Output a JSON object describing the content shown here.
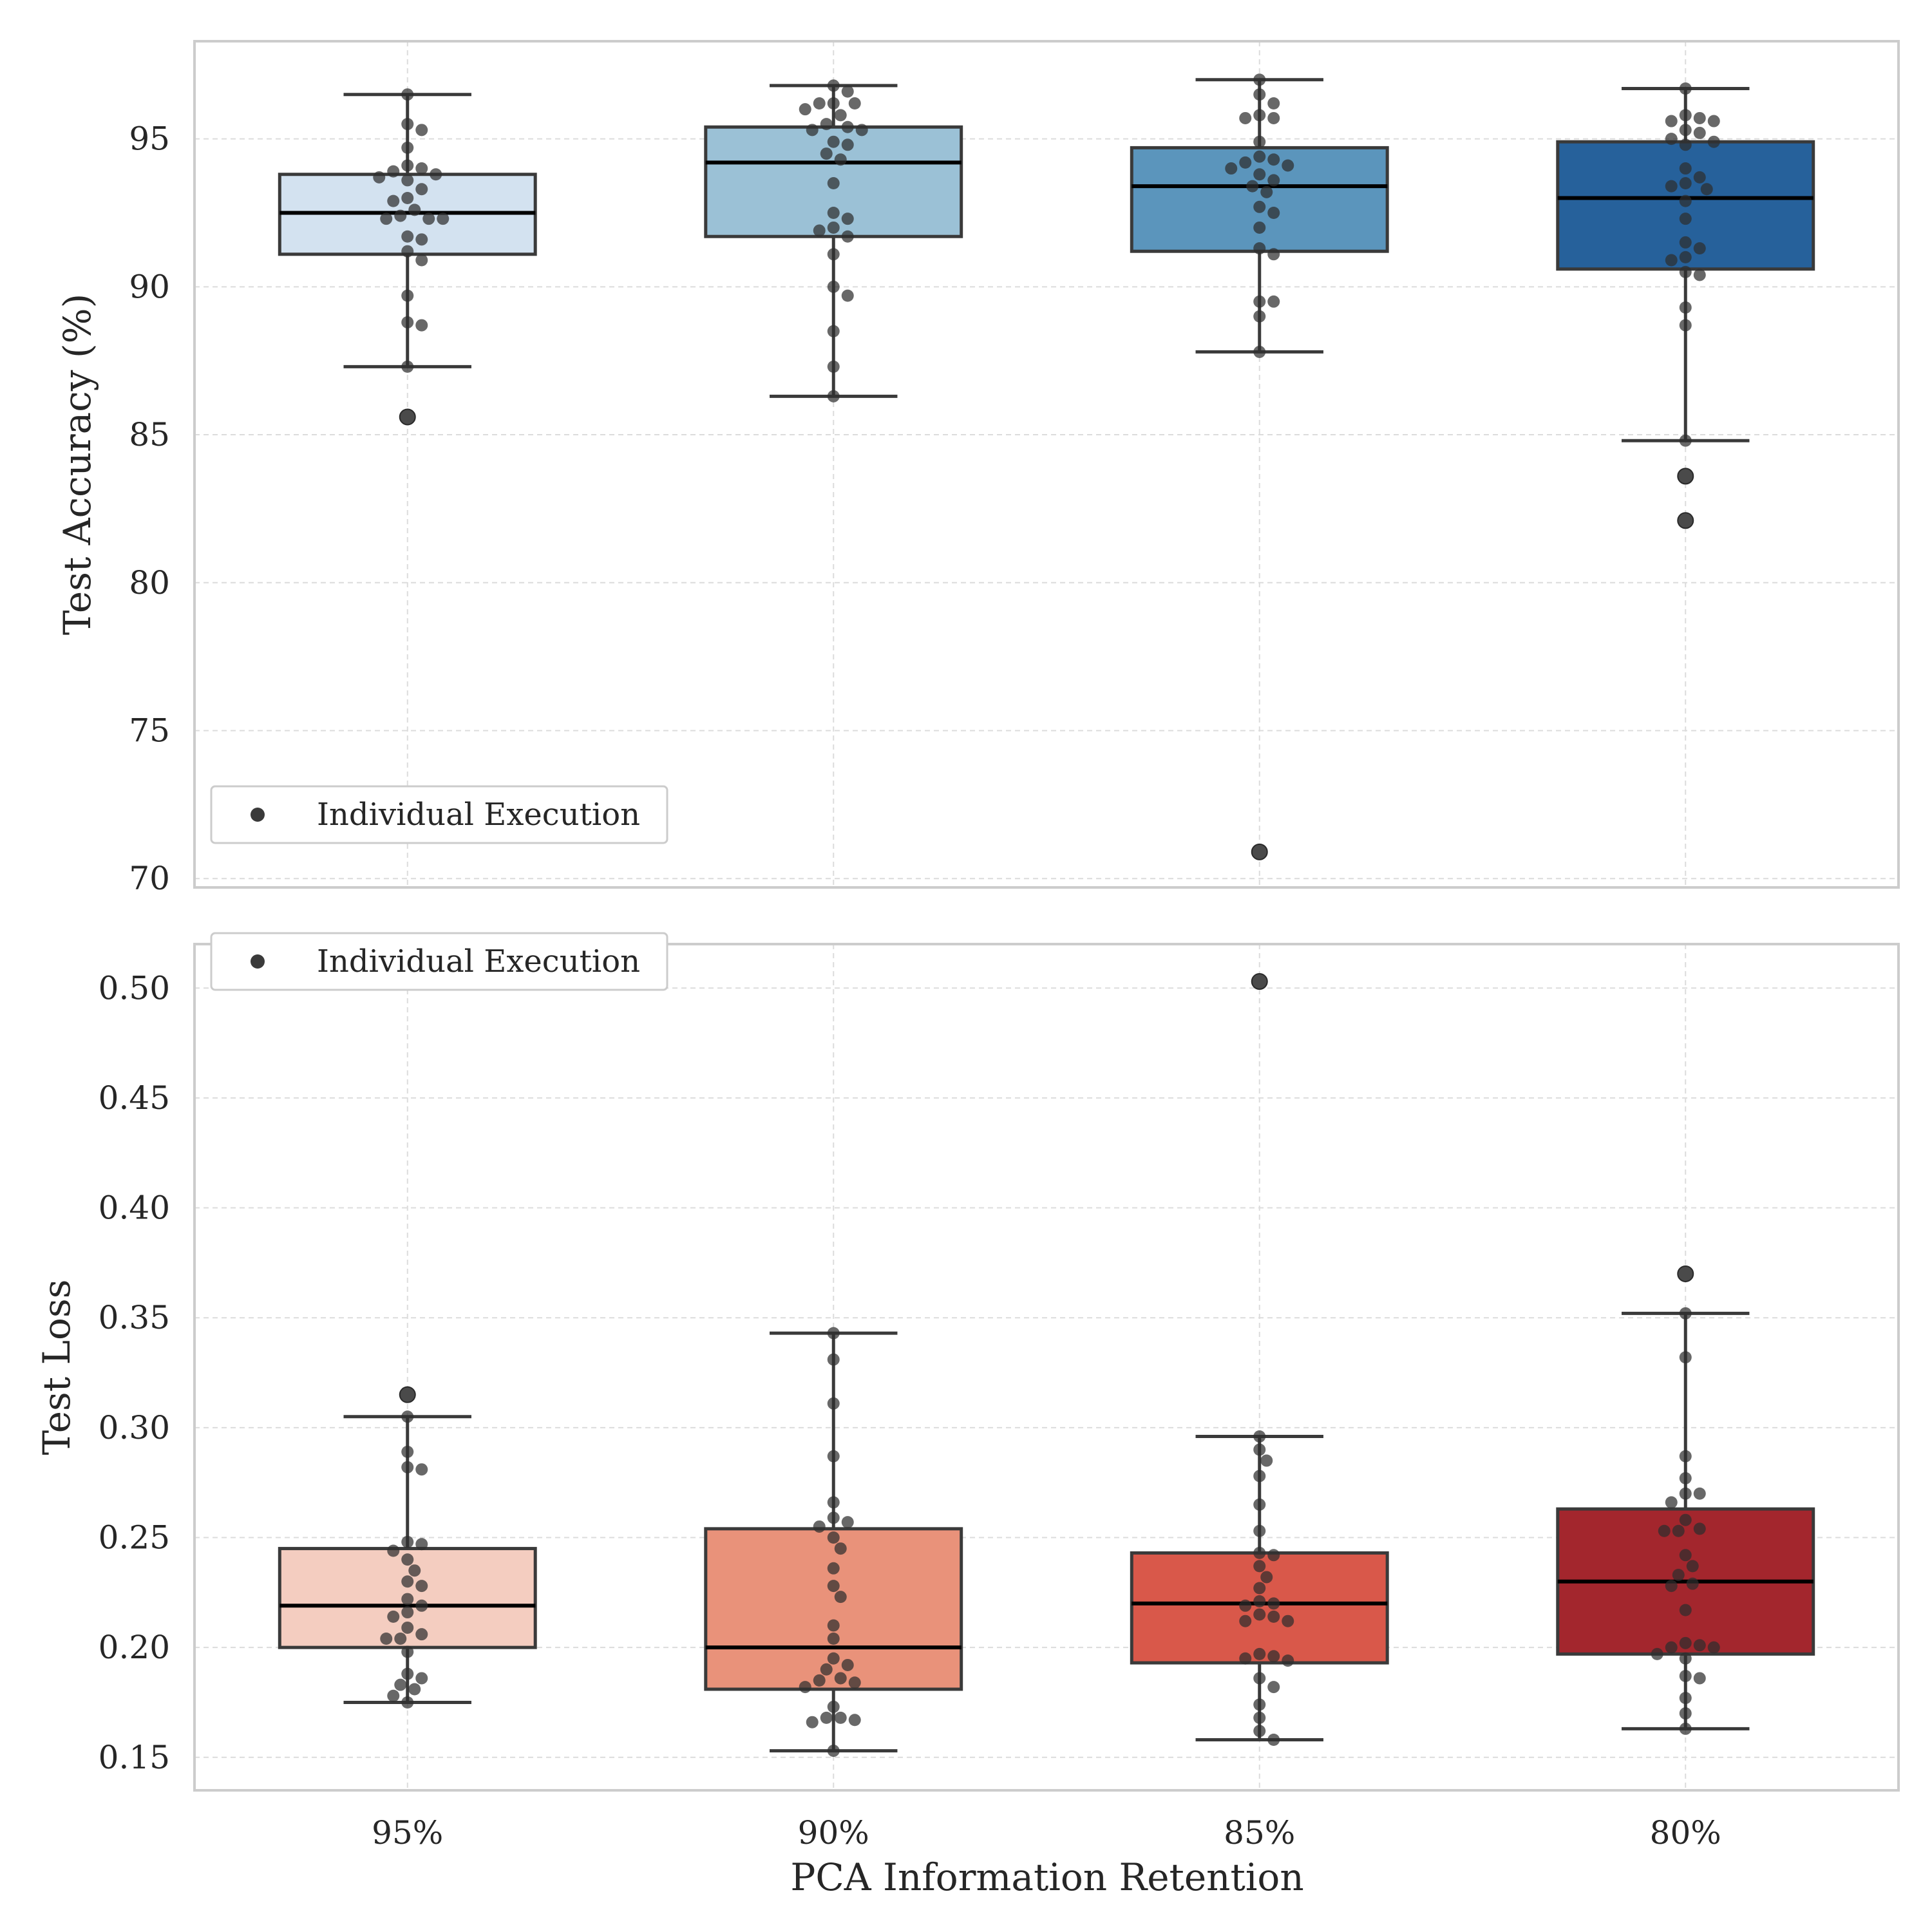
{
  "figure": {
    "xlabel": "PCA Information Retention",
    "legend_label": "Individual Execution",
    "legend_marker_color": "#3a3a3a"
  },
  "chart_data": [
    {
      "type": "box",
      "id": "accuracy",
      "ylabel": "Test Accuracy (%)",
      "categories": [
        "95%",
        "90%",
        "85%",
        "80%"
      ],
      "ylim": [
        69.7,
        98.3
      ],
      "yticks": [
        70,
        75,
        80,
        85,
        90,
        95
      ],
      "ytick_labels": [
        "70",
        "75",
        "80",
        "85",
        "90",
        "95"
      ],
      "grid": true,
      "legend_position": "lower-left",
      "colors": [
        "#d3e2f0",
        "#9bc1d6",
        "#5b95bc",
        "#26619b"
      ],
      "boxes": [
        {
          "q1": 91.1,
          "median": 92.5,
          "q3": 93.8,
          "whisker_low": 87.3,
          "whisker_high": 96.5,
          "outliers": [
            85.6
          ]
        },
        {
          "q1": 91.7,
          "median": 94.2,
          "q3": 95.4,
          "whisker_low": 86.3,
          "whisker_high": 96.8,
          "outliers": []
        },
        {
          "q1": 91.2,
          "median": 93.4,
          "q3": 94.7,
          "whisker_low": 87.8,
          "whisker_high": 97.0,
          "outliers": [
            70.9
          ]
        },
        {
          "q1": 90.6,
          "median": 93.0,
          "q3": 94.9,
          "whisker_low": 84.8,
          "whisker_high": 96.7,
          "outliers": [
            83.6,
            82.1
          ]
        }
      ],
      "points": [
        [
          96.5,
          95.5,
          95.3,
          94.7,
          94.1,
          94.0,
          93.9,
          93.8,
          93.7,
          93.6,
          93.3,
          93.0,
          92.9,
          92.6,
          92.4,
          92.3,
          92.3,
          92.3,
          91.7,
          91.6,
          91.2,
          90.9,
          89.7,
          88.8,
          88.7,
          87.3
        ],
        [
          96.8,
          96.6,
          96.2,
          96.2,
          96.2,
          96.0,
          95.8,
          95.5,
          95.4,
          95.3,
          95.3,
          94.9,
          94.8,
          94.5,
          94.3,
          93.5,
          92.5,
          92.3,
          92.0,
          91.9,
          91.7,
          91.1,
          90.0,
          89.7,
          88.5,
          87.3,
          86.3
        ],
        [
          97.0,
          96.5,
          96.2,
          95.8,
          95.7,
          95.7,
          94.9,
          94.4,
          94.3,
          94.2,
          94.1,
          94.0,
          93.8,
          93.6,
          93.4,
          93.2,
          92.7,
          92.5,
          92.0,
          91.3,
          91.1,
          89.5,
          89.5,
          89.0,
          87.8
        ],
        [
          96.7,
          95.8,
          95.7,
          95.6,
          95.6,
          95.3,
          95.2,
          95.0,
          94.9,
          94.8,
          94.0,
          93.7,
          93.5,
          93.4,
          93.3,
          92.9,
          92.3,
          91.5,
          91.3,
          91.0,
          90.9,
          90.5,
          90.4,
          89.3,
          88.7,
          84.8
        ]
      ]
    },
    {
      "type": "box",
      "id": "loss",
      "ylabel": "Test Loss",
      "categories": [
        "95%",
        "90%",
        "85%",
        "80%"
      ],
      "ylim": [
        0.135,
        0.52
      ],
      "yticks": [
        0.15,
        0.2,
        0.25,
        0.3,
        0.35,
        0.4,
        0.45,
        0.5
      ],
      "ytick_labels": [
        "0.15",
        "0.20",
        "0.25",
        "0.30",
        "0.35",
        "0.40",
        "0.45",
        "0.50"
      ],
      "grid": true,
      "legend_position": "upper-left",
      "colors": [
        "#f4cdc0",
        "#e9927a",
        "#d9584a",
        "#a3262d"
      ],
      "boxes": [
        {
          "q1": 0.2,
          "median": 0.219,
          "q3": 0.245,
          "whisker_low": 0.175,
          "whisker_high": 0.305,
          "outliers": [
            0.315
          ]
        },
        {
          "q1": 0.181,
          "median": 0.2,
          "q3": 0.254,
          "whisker_low": 0.153,
          "whisker_high": 0.343,
          "outliers": []
        },
        {
          "q1": 0.193,
          "median": 0.22,
          "q3": 0.243,
          "whisker_low": 0.158,
          "whisker_high": 0.296,
          "outliers": [
            0.503
          ]
        },
        {
          "q1": 0.197,
          "median": 0.23,
          "q3": 0.263,
          "whisker_low": 0.163,
          "whisker_high": 0.352,
          "outliers": [
            0.37
          ]
        }
      ],
      "points": [
        [
          0.305,
          0.289,
          0.282,
          0.281,
          0.248,
          0.247,
          0.244,
          0.24,
          0.235,
          0.23,
          0.228,
          0.222,
          0.219,
          0.216,
          0.214,
          0.209,
          0.206,
          0.204,
          0.204,
          0.198,
          0.188,
          0.186,
          0.183,
          0.181,
          0.178,
          0.175
        ],
        [
          0.343,
          0.331,
          0.311,
          0.287,
          0.266,
          0.259,
          0.257,
          0.255,
          0.25,
          0.245,
          0.236,
          0.228,
          0.223,
          0.21,
          0.204,
          0.195,
          0.192,
          0.19,
          0.186,
          0.185,
          0.184,
          0.182,
          0.173,
          0.168,
          0.168,
          0.167,
          0.166,
          0.153
        ],
        [
          0.296,
          0.29,
          0.285,
          0.278,
          0.265,
          0.253,
          0.243,
          0.242,
          0.237,
          0.232,
          0.227,
          0.221,
          0.22,
          0.219,
          0.215,
          0.214,
          0.212,
          0.212,
          0.197,
          0.196,
          0.195,
          0.194,
          0.186,
          0.182,
          0.174,
          0.168,
          0.162,
          0.158
        ],
        [
          0.352,
          0.332,
          0.287,
          0.277,
          0.27,
          0.27,
          0.266,
          0.258,
          0.254,
          0.253,
          0.253,
          0.242,
          0.237,
          0.233,
          0.229,
          0.228,
          0.217,
          0.202,
          0.201,
          0.2,
          0.2,
          0.197,
          0.195,
          0.187,
          0.186,
          0.177,
          0.17,
          0.163
        ]
      ]
    }
  ]
}
